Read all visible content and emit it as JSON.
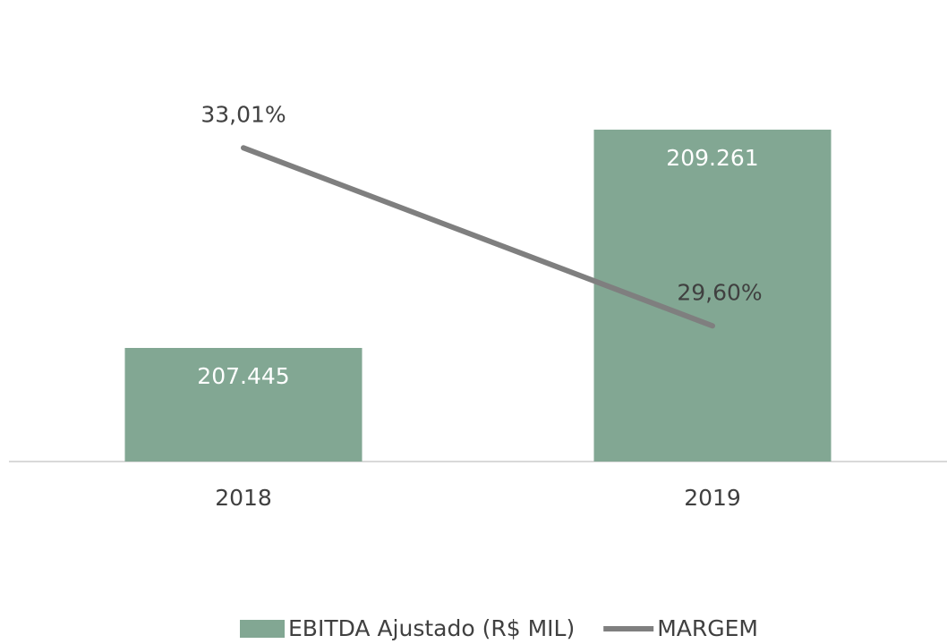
{
  "chart_data": {
    "type": "bar",
    "categories": [
      "2018",
      "2019"
    ],
    "series": [
      {
        "name": "EBITDA Ajustado (R$ MIL)",
        "type": "bar",
        "color": "#82a793",
        "values": [
          207445,
          209261
        ],
        "value_labels": [
          "207.445",
          "209.261"
        ]
      },
      {
        "name": "MARGEM",
        "type": "line",
        "axis": "y2",
        "color": "#7f7f7f",
        "values": [
          33.01,
          29.6
        ],
        "value_labels": [
          "33,01%",
          "29,60%"
        ]
      }
    ],
    "ylim": [
      206500,
      209800
    ],
    "y2lim": [
      27,
      34.6
    ],
    "legend": "bottom"
  }
}
